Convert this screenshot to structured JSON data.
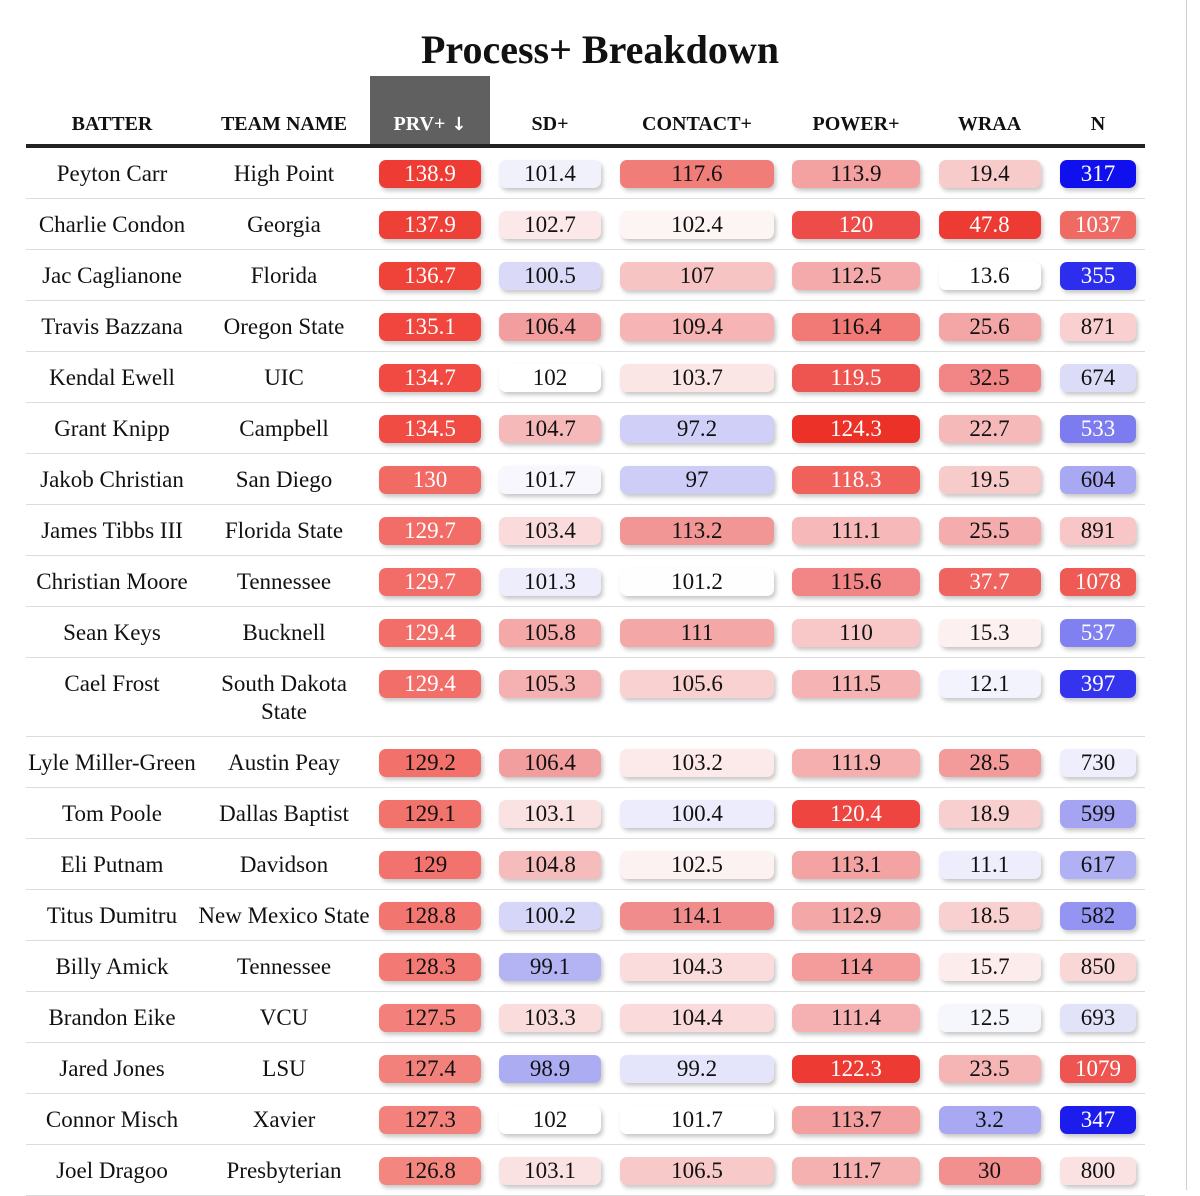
{
  "title": "Process+ Breakdown",
  "headers": {
    "batter": "BATTER",
    "team": "TEAM NAME",
    "prv": "PRV+",
    "sort_arrow": "↓",
    "sd": "SD+",
    "contact": "CONTACT+",
    "power": "POWER+",
    "wraa": "WRAA",
    "n": "N"
  },
  "rows": [
    {
      "batter": "Peyton Carr",
      "team": "High Point",
      "prv": "138.9",
      "sd": "101.4",
      "contact": "117.6",
      "power": "113.9",
      "wraa": "19.4",
      "n": "317",
      "c": {
        "prv": "#ee3b33",
        "sd": "#f1f1fc",
        "contact": "#f07d78",
        "power": "#f4a1a1",
        "wraa": "#f8cbcb",
        "n": "#1010ee"
      }
    },
    {
      "batter": "Charlie Condon",
      "team": "Georgia",
      "prv": "137.9",
      "sd": "102.7",
      "contact": "102.4",
      "power": "120",
      "wraa": "47.8",
      "n": "1037",
      "c": {
        "prv": "#ef4038",
        "sd": "#fce8e8",
        "contact": "#fdf4f4",
        "power": "#ee4c48",
        "wraa": "#ed3a32",
        "n": "#f06a64"
      }
    },
    {
      "batter": "Jac Caglianone",
      "team": "Florida",
      "prv": "136.7",
      "sd": "100.5",
      "contact": "107",
      "power": "112.5",
      "wraa": "13.6",
      "n": "355",
      "c": {
        "prv": "#ef4239",
        "sd": "#dadaf8",
        "contact": "#f7c4c4",
        "power": "#f4aaaa",
        "wraa": "#ffffff",
        "n": "#2d2ded"
      }
    },
    {
      "batter": "Travis Bazzana",
      "team": "Oregon State",
      "prv": "135.1",
      "sd": "106.4",
      "contact": "109.4",
      "power": "116.4",
      "wraa": "25.6",
      "n": "871",
      "c": {
        "prv": "#f0463e",
        "sd": "#f39e9e",
        "contact": "#f6b4b4",
        "power": "#f17a77",
        "wraa": "#f4a5a5",
        "n": "#f9cfcf"
      }
    },
    {
      "batter": "Kendal Ewell",
      "team": "UIC",
      "prv": "134.7",
      "sd": "102",
      "contact": "103.7",
      "power": "119.5",
      "wraa": "32.5",
      "n": "674",
      "c": {
        "prv": "#f04a42",
        "sd": "#ffffff",
        "contact": "#fbe6e6",
        "power": "#ef5550",
        "wraa": "#f28585",
        "n": "#dcdcf8"
      }
    },
    {
      "batter": "Grant Knipp",
      "team": "Campbell",
      "prv": "134.5",
      "sd": "104.7",
      "contact": "97.2",
      "power": "124.3",
      "wraa": "22.7",
      "n": "533",
      "c": {
        "prv": "#f04c44",
        "sd": "#f6b9b9",
        "contact": "#cfcff7",
        "power": "#ec3128",
        "wraa": "#f6b9b9",
        "n": "#7c7cf0"
      }
    },
    {
      "batter": "Jakob Christian",
      "team": "San Diego",
      "prv": "130",
      "sd": "101.7",
      "contact": "97",
      "power": "118.3",
      "wraa": "19.5",
      "n": "604",
      "c": {
        "prv": "#f26a64",
        "sd": "#f7f7fd",
        "contact": "#cdcdf7",
        "power": "#f0615c",
        "wraa": "#f8cbcb",
        "n": "#a8a8f3"
      }
    },
    {
      "batter": "James Tibbs III",
      "team": "Florida State",
      "prv": "129.7",
      "sd": "103.4",
      "contact": "113.2",
      "power": "111.1",
      "wraa": "25.5",
      "n": "891",
      "c": {
        "prv": "#f26d67",
        "sd": "#fadada",
        "contact": "#f29595",
        "power": "#f6b8b8",
        "wraa": "#f5acac",
        "n": "#f8c6c6"
      }
    },
    {
      "batter": "Christian Moore",
      "team": "Tennessee",
      "prv": "129.7",
      "sd": "101.3",
      "contact": "101.2",
      "power": "115.6",
      "wraa": "37.7",
      "n": "1078",
      "c": {
        "prv": "#f26d67",
        "sd": "#ededfc",
        "contact": "#fefefe",
        "power": "#f28585",
        "wraa": "#f06460",
        "n": "#ef5a55"
      }
    },
    {
      "batter": "Sean Keys",
      "team": "Bucknell",
      "prv": "129.4",
      "sd": "105.8",
      "contact": "111",
      "power": "110",
      "wraa": "15.3",
      "n": "537",
      "c": {
        "prv": "#f26f69",
        "sd": "#f4a8a8",
        "contact": "#f4a7a7",
        "power": "#f8c8c8",
        "wraa": "#fdf0f0",
        "n": "#8080f1"
      }
    },
    {
      "batter": "Cael Frost",
      "team": "South Dakota State",
      "prv": "129.4",
      "sd": "105.3",
      "contact": "105.6",
      "power": "111.5",
      "wraa": "12.1",
      "n": "397",
      "c": {
        "prv": "#f26f69",
        "sd": "#f5b1b1",
        "contact": "#f9d1d1",
        "power": "#f5b3b3",
        "wraa": "#f3f3fd",
        "n": "#3434ee"
      }
    },
    {
      "batter": "Lyle Miller-Green",
      "team": "Austin Peay",
      "prv": "129.2",
      "sd": "106.4",
      "contact": "103.2",
      "power": "111.9",
      "wraa": "28.5",
      "n": "730",
      "c": {
        "prv": "#f2716b",
        "sd": "#f39e9e",
        "contact": "#fce9e9",
        "power": "#f5afaf",
        "wraa": "#f39a9a",
        "n": "#eeeefc"
      }
    },
    {
      "batter": "Tom Poole",
      "team": "Dallas Baptist",
      "prv": "129.1",
      "sd": "103.1",
      "contact": "100.4",
      "power": "120.4",
      "wraa": "18.9",
      "n": "599",
      "c": {
        "prv": "#f2726c",
        "sd": "#fbe2e2",
        "contact": "#ececfc",
        "power": "#ee4540",
        "wraa": "#f8cfcf",
        "n": "#a4a4f3"
      }
    },
    {
      "batter": "Eli Putnam",
      "team": "Davidson",
      "prv": "129",
      "sd": "104.8",
      "contact": "102.5",
      "power": "113.1",
      "wraa": "11.1",
      "n": "617",
      "c": {
        "prv": "#f2736d",
        "sd": "#f6bbbb",
        "contact": "#fdf2f2",
        "power": "#f4a3a3",
        "wraa": "#ededfc",
        "n": "#b0b0f4"
      }
    },
    {
      "batter": "Titus Dumitru",
      "team": "New Mexico State",
      "prv": "128.8",
      "sd": "100.2",
      "contact": "114.1",
      "power": "112.9",
      "wraa": "18.5",
      "n": "582",
      "c": {
        "prv": "#f2756f",
        "sd": "#d6d6f8",
        "contact": "#f18c8c",
        "power": "#f4a7a7",
        "wraa": "#f8d0d0",
        "n": "#9494f2"
      }
    },
    {
      "batter": "Billy Amick",
      "team": "Tennessee",
      "prv": "128.3",
      "sd": "99.1",
      "contact": "104.3",
      "power": "114",
      "wraa": "15.7",
      "n": "850",
      "c": {
        "prv": "#f37a74",
        "sd": "#b4b4f4",
        "contact": "#fadcdc",
        "power": "#f49c9c",
        "wraa": "#fcecec",
        "n": "#fad7d7"
      }
    },
    {
      "batter": "Brandon Eike",
      "team": "VCU",
      "prv": "127.5",
      "sd": "103.3",
      "contact": "104.4",
      "power": "111.4",
      "wraa": "12.5",
      "n": "693",
      "c": {
        "prv": "#f3807a",
        "sd": "#fadcdc",
        "contact": "#fadada",
        "power": "#f5b1b1",
        "wraa": "#f6f6fd",
        "n": "#e2e2f9"
      }
    },
    {
      "batter": "Jared Jones",
      "team": "LSU",
      "prv": "127.4",
      "sd": "98.9",
      "contact": "99.2",
      "power": "122.3",
      "wraa": "23.5",
      "n": "1079",
      "c": {
        "prv": "#f3817b",
        "sd": "#acacf3",
        "contact": "#e4e4fa",
        "power": "#ed3a32",
        "wraa": "#f6b5b5",
        "n": "#ef5550"
      }
    },
    {
      "batter": "Connor Misch",
      "team": "Xavier",
      "prv": "127.3",
      "sd": "102",
      "contact": "101.7",
      "power": "113.7",
      "wraa": "3.2",
      "n": "347",
      "c": {
        "prv": "#f3827c",
        "sd": "#ffffff",
        "contact": "#ffffff",
        "power": "#f49f9f",
        "wraa": "#a8a8f3",
        "n": "#1c1cec"
      }
    },
    {
      "batter": "Joel Dragoo",
      "team": "Presbyterian",
      "prv": "126.8",
      "sd": "103.1",
      "contact": "106.5",
      "power": "111.7",
      "wraa": "30",
      "n": "800",
      "c": {
        "prv": "#f48680",
        "sd": "#fbe2e2",
        "contact": "#f8c9c9",
        "power": "#f5b0b0",
        "wraa": "#f28f8f",
        "n": "#fae2e2"
      }
    }
  ]
}
